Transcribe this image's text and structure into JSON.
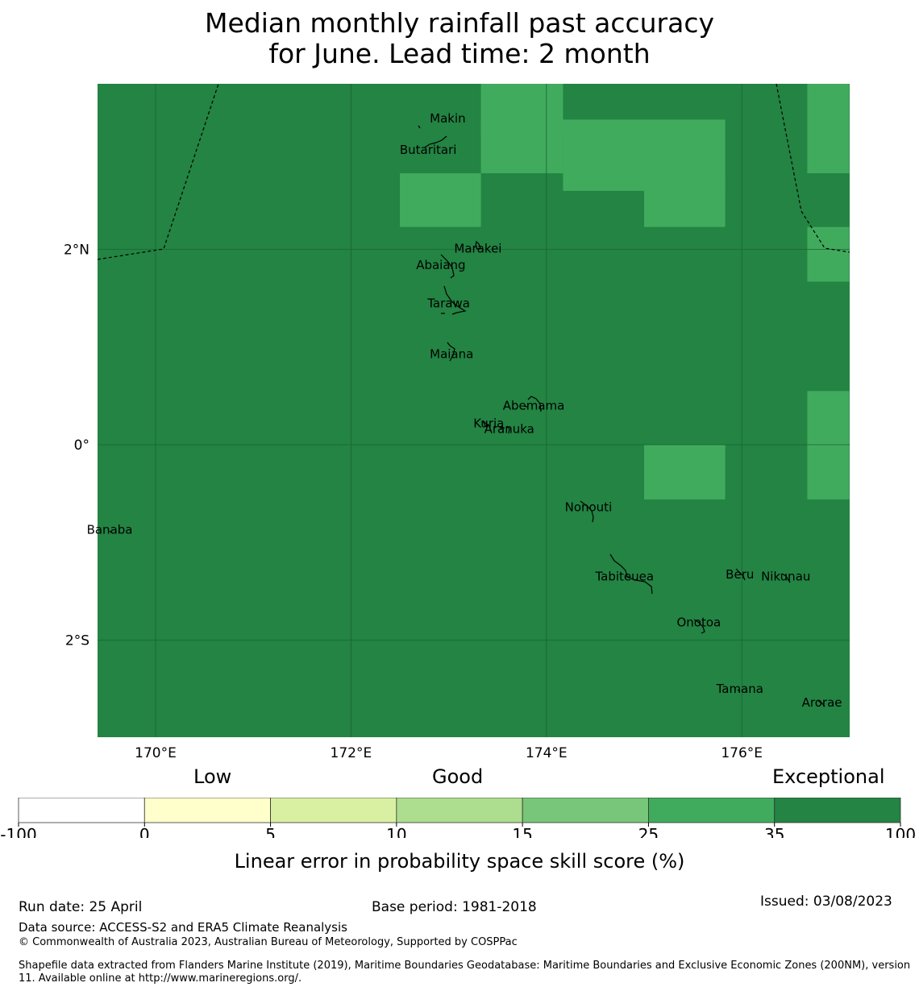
{
  "title": {
    "line1": "Median monthly rainfall past accuracy",
    "line2": "for June. Lead time: 2 month"
  },
  "colors": {
    "exceptional": "#238443",
    "skill_25_35": "#41ab5d",
    "grid_line": "#1a6332",
    "boundary_line": "#000000"
  },
  "map": {
    "type": "categorical-grid-map",
    "extent": {
      "lon": [
        169.4,
        177.1
      ],
      "lat": [
        -3.0,
        3.7
      ]
    },
    "x_ticks": [
      {
        "lon": 170,
        "label": "170°E"
      },
      {
        "lon": 172,
        "label": "172°E"
      },
      {
        "lon": 174,
        "label": "174°E"
      },
      {
        "lon": 176,
        "label": "176°E"
      }
    ],
    "y_ticks": [
      {
        "lat": 2,
        "label": "2°N"
      },
      {
        "lat": 0,
        "label": "0°"
      },
      {
        "lat": -2,
        "label": "2°S"
      }
    ],
    "background_class": "35-100",
    "skill_cells_25_35": [
      {
        "lon": [
          173.33,
          174.17
        ],
        "lat": [
          3.17,
          3.7
        ]
      },
      {
        "lon": [
          174.17,
          175.83
        ],
        "lat": [
          2.6,
          3.33
        ]
      },
      {
        "lon": [
          172.5,
          173.33
        ],
        "lat": [
          2.23,
          2.78
        ]
      },
      {
        "lon": [
          173.33,
          174.17
        ],
        "lat": [
          2.78,
          3.33
        ]
      },
      {
        "lon": [
          175.0,
          175.83
        ],
        "lat": [
          2.23,
          2.78
        ]
      },
      {
        "lon": [
          176.67,
          177.1
        ],
        "lat": [
          2.78,
          3.7
        ]
      },
      {
        "lon": [
          176.67,
          177.1
        ],
        "lat": [
          1.67,
          2.23
        ]
      },
      {
        "lon": [
          176.67,
          177.1
        ],
        "lat": [
          -0.56,
          0.55
        ]
      },
      {
        "lon": [
          175.0,
          175.83
        ],
        "lat": [
          -0.56,
          0.0
        ]
      }
    ],
    "places": [
      {
        "name": "Makin",
        "lon": 172.99,
        "lat": 3.34
      },
      {
        "name": "Butaritari",
        "lon": 172.79,
        "lat": 3.02
      },
      {
        "name": "Marakei",
        "lon": 173.3,
        "lat": 2.01
      },
      {
        "name": "Abaiang",
        "lon": 172.92,
        "lat": 1.84
      },
      {
        "name": "Tarawa",
        "lon": 173.0,
        "lat": 1.45
      },
      {
        "name": "Maiana",
        "lon": 173.03,
        "lat": 0.93
      },
      {
        "name": "Abemama",
        "lon": 173.87,
        "lat": 0.4
      },
      {
        "name": "Kuria",
        "lon": 173.41,
        "lat": 0.22
      },
      {
        "name": "Aranuka",
        "lon": 173.62,
        "lat": 0.16
      },
      {
        "name": "Nonouti",
        "lon": 174.43,
        "lat": -0.64
      },
      {
        "name": "Banaba",
        "lon": 169.53,
        "lat": -0.87
      },
      {
        "name": "Tabiteuea",
        "lon": 174.8,
        "lat": -1.35
      },
      {
        "name": "Beru",
        "lon": 175.98,
        "lat": -1.33
      },
      {
        "name": "Nikunau",
        "lon": 176.45,
        "lat": -1.35
      },
      {
        "name": "Onotoa",
        "lon": 175.56,
        "lat": -1.82
      },
      {
        "name": "Tamana",
        "lon": 175.98,
        "lat": -2.5
      },
      {
        "name": "Arorae",
        "lon": 176.82,
        "lat": -2.64
      }
    ]
  },
  "colorbar": {
    "boundaries": [
      "-100",
      "0",
      "5",
      "10",
      "15",
      "25",
      "35",
      "100"
    ],
    "colors": [
      "#ffffff",
      "#ffffcc",
      "#d9f0a3",
      "#addd8e",
      "#78c679",
      "#41ab5d",
      "#238443"
    ],
    "category_labels": {
      "low": "Low",
      "good": "Good",
      "exceptional": "Exceptional"
    },
    "title": "Linear error in probability space skill score (%)"
  },
  "footer": {
    "run_date": "Run date: 25 April",
    "base_period": "Base period: 1981-2018",
    "issued": "Issued: 03/08/2023",
    "data_source": "Data source: ACCESS-S2 and ERA5 Climate Reanalysis",
    "copyright": "© Commonwealth of Australia 2023, Australian Bureau of Meteorology, Supported by COSPPac",
    "shapefile_note": "Shapefile data extracted from Flanders Marine Institute (2019), Maritime Boundaries Geodatabase: Maritime Boundaries and Exclusive Economic Zones (200NM), version 11. Available online at http://www.marineregions.org/."
  }
}
